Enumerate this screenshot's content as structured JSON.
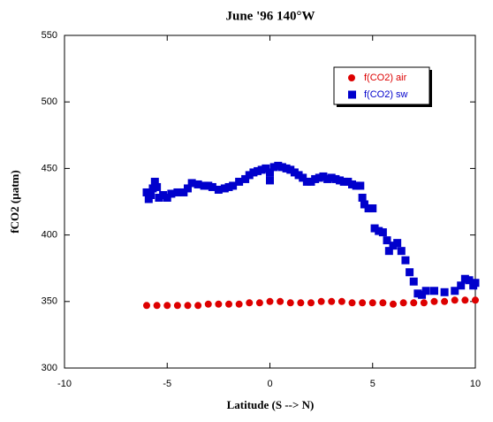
{
  "chart_data": {
    "type": "scatter",
    "title": "June '96 140°W",
    "x_label": "Latitude (S --> N)",
    "y_label": "fCO2 (µatm)",
    "xlim": [
      -10,
      10
    ],
    "xticks": [
      -10,
      -5,
      0,
      5,
      10
    ],
    "ylim": [
      300,
      550
    ],
    "yticks": [
      300,
      350,
      400,
      450,
      500,
      550
    ],
    "legend": "upper right",
    "series": [
      {
        "name": "f(CO2) air",
        "color": "#dd0000",
        "marker": "circle",
        "x": [
          -6.0,
          -5.5,
          -5.0,
          -4.5,
          -4.0,
          -3.5,
          -3.0,
          -2.5,
          -2.0,
          -1.5,
          -1.0,
          -0.5,
          0.0,
          0.5,
          1.0,
          1.5,
          2.0,
          2.5,
          3.0,
          3.5,
          4.0,
          4.5,
          5.0,
          5.5,
          6.0,
          6.5,
          7.0,
          7.5,
          8.0,
          8.5,
          9.0,
          9.5,
          10.0
        ],
        "values": [
          347,
          347,
          347,
          347,
          347,
          347,
          348,
          348,
          348,
          348,
          349,
          349,
          350,
          350,
          349,
          349,
          349,
          350,
          350,
          350,
          349,
          349,
          349,
          349,
          348,
          349,
          349,
          349,
          350,
          350,
          351,
          351,
          351
        ]
      },
      {
        "name": "f(CO2) sw",
        "color": "#0000cc",
        "marker": "square",
        "x": [
          -6.0,
          -5.9,
          -5.8,
          -5.7,
          -5.6,
          -5.5,
          -5.4,
          -5.2,
          -5.0,
          -4.8,
          -4.5,
          -4.2,
          -4.0,
          -3.8,
          -3.5,
          -3.2,
          -3.0,
          -2.8,
          -2.5,
          -2.2,
          -2.0,
          -1.8,
          -1.5,
          -1.2,
          -1.0,
          -0.8,
          -0.6,
          -0.4,
          -0.2,
          0.0,
          0.0,
          0.2,
          0.4,
          0.6,
          0.8,
          1.0,
          1.2,
          1.4,
          1.6,
          1.8,
          2.0,
          2.2,
          2.4,
          2.6,
          2.8,
          3.0,
          3.2,
          3.4,
          3.6,
          3.8,
          4.0,
          4.2,
          4.4,
          4.5,
          4.6,
          4.8,
          5.0,
          5.1,
          5.3,
          5.5,
          5.7,
          5.8,
          6.0,
          6.2,
          6.4,
          6.6,
          6.8,
          7.0,
          7.2,
          7.4,
          7.6,
          8.0,
          8.5,
          9.0,
          9.3,
          9.5,
          9.7,
          9.9,
          10.0
        ],
        "values": [
          432,
          427,
          430,
          435,
          440,
          436,
          428,
          430,
          428,
          431,
          432,
          432,
          435,
          439,
          438,
          437,
          437,
          436,
          434,
          435,
          436,
          437,
          440,
          442,
          445,
          447,
          448,
          449,
          450,
          447,
          441,
          451,
          452,
          451,
          450,
          449,
          447,
          445,
          443,
          440,
          440,
          442,
          443,
          444,
          442,
          443,
          442,
          441,
          440,
          440,
          438,
          437,
          437,
          428,
          423,
          420,
          420,
          405,
          403,
          402,
          396,
          388,
          392,
          394,
          388,
          381,
          372,
          365,
          356,
          355,
          358,
          358,
          357,
          358,
          362,
          367,
          366,
          362,
          364
        ]
      }
    ]
  }
}
